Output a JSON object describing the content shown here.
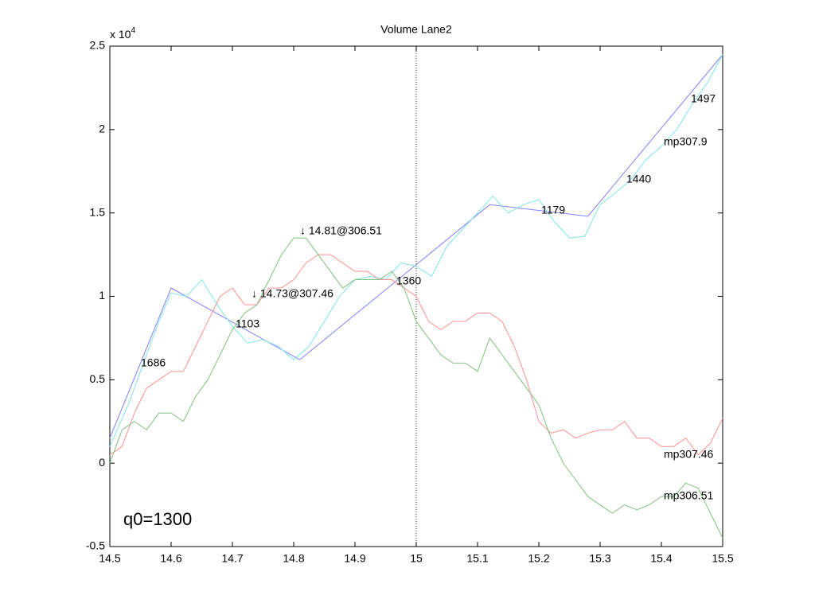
{
  "chart_data": {
    "type": "line",
    "title": "Volume Lane2",
    "y_multiplier": {
      "base": "x 10",
      "exponent": "4"
    },
    "xlim": [
      14.5,
      15.5
    ],
    "ylim": [
      -0.5,
      2.5
    ],
    "xticks": [
      14.5,
      14.6,
      14.7,
      14.8,
      14.9,
      15,
      15.1,
      15.2,
      15.3,
      15.4,
      15.5
    ],
    "yticks": [
      -0.5,
      0,
      0.5,
      1,
      1.5,
      2,
      2.5
    ],
    "vline": 15,
    "grid": false,
    "series": [
      {
        "color": "#8080ff",
        "x": [
          14.5,
          14.6,
          14.81,
          15.12,
          15.28,
          15.5
        ],
        "values": [
          0.15,
          1.05,
          0.62,
          1.55,
          1.48,
          2.45
        ]
      },
      {
        "color": "#7fe5e5",
        "x": [
          14.5,
          14.53,
          14.55,
          14.58,
          14.6,
          14.625,
          14.65,
          14.675,
          14.7,
          14.725,
          14.75,
          14.775,
          14.8,
          14.825,
          14.85,
          14.875,
          14.9,
          14.925,
          14.95,
          14.975,
          15,
          15.025,
          15.05,
          15.075,
          15.1,
          15.125,
          15.15,
          15.175,
          15.2,
          15.225,
          15.25,
          15.275,
          15.3,
          15.325,
          15.35,
          15.375,
          15.4,
          15.425,
          15.45,
          15.475,
          15.5
        ],
        "values": [
          0.1,
          0.35,
          0.55,
          0.85,
          1.02,
          1.0,
          1.1,
          0.95,
          0.82,
          0.72,
          0.74,
          0.7,
          0.62,
          0.7,
          0.85,
          1.0,
          1.1,
          1.12,
          1.1,
          1.2,
          1.18,
          1.12,
          1.3,
          1.4,
          1.5,
          1.6,
          1.5,
          1.55,
          1.58,
          1.45,
          1.35,
          1.36,
          1.55,
          1.62,
          1.7,
          1.82,
          1.9,
          2.0,
          2.15,
          2.28,
          2.45
        ]
      },
      {
        "color": "#ff9090",
        "x": [
          14.5,
          14.52,
          14.54,
          14.56,
          14.58,
          14.6,
          14.62,
          14.64,
          14.66,
          14.68,
          14.7,
          14.72,
          14.74,
          14.76,
          14.78,
          14.8,
          14.82,
          14.84,
          14.86,
          14.88,
          14.9,
          14.92,
          14.94,
          14.96,
          14.98,
          15,
          15.02,
          15.04,
          15.06,
          15.08,
          15.1,
          15.12,
          15.14,
          15.16,
          15.18,
          15.2,
          15.22,
          15.24,
          15.26,
          15.28,
          15.3,
          15.32,
          15.34,
          15.36,
          15.38,
          15.4,
          15.42,
          15.44,
          15.46,
          15.48,
          15.5
        ],
        "values": [
          0.05,
          0.1,
          0.3,
          0.45,
          0.5,
          0.55,
          0.55,
          0.7,
          0.85,
          1.0,
          1.05,
          0.95,
          0.95,
          1.05,
          1.05,
          1.1,
          1.2,
          1.25,
          1.25,
          1.2,
          1.15,
          1.15,
          1.1,
          1.1,
          1.05,
          1.0,
          0.85,
          0.8,
          0.85,
          0.85,
          0.9,
          0.9,
          0.85,
          0.7,
          0.5,
          0.25,
          0.18,
          0.2,
          0.15,
          0.18,
          0.2,
          0.2,
          0.25,
          0.15,
          0.15,
          0.1,
          0.1,
          0.15,
          0.05,
          0.12,
          0.27
        ]
      },
      {
        "color": "#80c080",
        "x": [
          14.5,
          14.52,
          14.54,
          14.56,
          14.58,
          14.6,
          14.62,
          14.64,
          14.66,
          14.68,
          14.7,
          14.72,
          14.74,
          14.76,
          14.78,
          14.8,
          14.82,
          14.84,
          14.86,
          14.88,
          14.9,
          14.92,
          14.94,
          14.96,
          14.98,
          15,
          15.02,
          15.04,
          15.06,
          15.08,
          15.1,
          15.12,
          15.14,
          15.16,
          15.18,
          15.2,
          15.22,
          15.24,
          15.26,
          15.28,
          15.3,
          15.32,
          15.34,
          15.36,
          15.38,
          15.4,
          15.42,
          15.44,
          15.46,
          15.48,
          15.5
        ],
        "values": [
          0.0,
          0.2,
          0.25,
          0.2,
          0.3,
          0.3,
          0.25,
          0.4,
          0.5,
          0.65,
          0.8,
          0.9,
          0.95,
          1.1,
          1.25,
          1.35,
          1.35,
          1.25,
          1.15,
          1.05,
          1.1,
          1.1,
          1.1,
          1.15,
          1.05,
          0.85,
          0.75,
          0.65,
          0.6,
          0.6,
          0.55,
          0.75,
          0.65,
          0.55,
          0.45,
          0.35,
          0.15,
          0.0,
          -0.1,
          -0.2,
          -0.25,
          -0.3,
          -0.25,
          -0.28,
          -0.25,
          -0.2,
          -0.2,
          -0.12,
          -0.15,
          -0.3,
          -0.45
        ]
      }
    ],
    "annotations": [
      "1686",
      "1103",
      "↓ 14.73@307.46",
      "↓ 14.81@306.51",
      "1360",
      "1179",
      "1440",
      "mp307.9",
      "1497",
      "mp307.46",
      "mp306.51",
      "q0=1300"
    ]
  }
}
